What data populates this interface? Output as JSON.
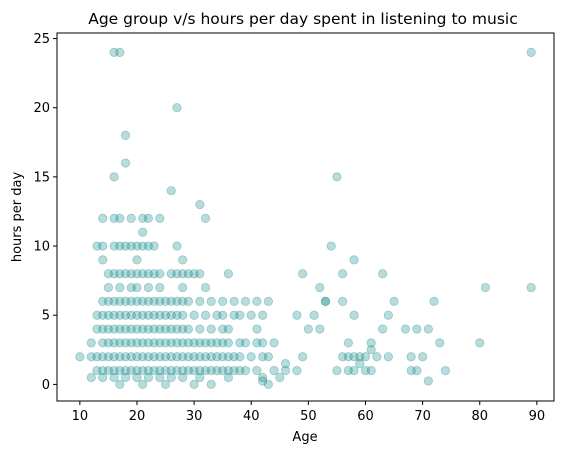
{
  "chart_data": {
    "type": "scatter",
    "title": "Age group v/s hours per day spent in listening to music",
    "xlabel": "Age",
    "ylabel": "hours per day",
    "xlim": [
      6,
      93
    ],
    "ylim": [
      -1.2,
      25.4
    ],
    "xticks": [
      10,
      20,
      30,
      40,
      50,
      60,
      70,
      80,
      90
    ],
    "yticks": [
      0,
      5,
      10,
      15,
      20,
      25
    ],
    "grid": false,
    "marker_color": "#008080",
    "marker_alpha": 0.28,
    "points": [
      [
        16,
        24
      ],
      [
        17,
        24
      ],
      [
        89,
        24
      ],
      [
        27,
        20
      ],
      [
        18,
        18
      ],
      [
        18,
        16
      ],
      [
        16,
        15
      ],
      [
        55,
        15
      ],
      [
        26,
        14
      ],
      [
        31,
        13
      ],
      [
        14,
        12
      ],
      [
        16,
        12
      ],
      [
        17,
        12
      ],
      [
        19,
        12
      ],
      [
        21,
        12
      ],
      [
        22,
        12
      ],
      [
        24,
        12
      ],
      [
        32,
        12
      ],
      [
        13,
        10
      ],
      [
        14,
        10
      ],
      [
        16,
        10
      ],
      [
        17,
        10
      ],
      [
        18,
        10
      ],
      [
        19,
        10
      ],
      [
        20,
        10
      ],
      [
        21,
        10
      ],
      [
        22,
        10
      ],
      [
        23,
        10
      ],
      [
        27,
        10
      ],
      [
        54,
        10
      ],
      [
        14,
        9
      ],
      [
        20,
        9
      ],
      [
        28,
        9
      ],
      [
        21,
        11
      ],
      [
        53,
        6
      ],
      [
        58,
        9
      ],
      [
        15,
        8
      ],
      [
        16,
        8
      ],
      [
        17,
        8
      ],
      [
        18,
        8
      ],
      [
        19,
        8
      ],
      [
        20,
        8
      ],
      [
        21,
        8
      ],
      [
        22,
        8
      ],
      [
        23,
        8
      ],
      [
        24,
        8
      ],
      [
        26,
        8
      ],
      [
        27,
        8
      ],
      [
        28,
        8
      ],
      [
        29,
        8
      ],
      [
        30,
        8
      ],
      [
        31,
        8
      ],
      [
        36,
        8
      ],
      [
        49,
        8
      ],
      [
        56,
        8
      ],
      [
        63,
        8
      ],
      [
        15,
        7
      ],
      [
        17,
        7
      ],
      [
        19,
        7
      ],
      [
        20,
        7
      ],
      [
        22,
        7
      ],
      [
        24,
        7
      ],
      [
        28,
        7
      ],
      [
        32,
        7
      ],
      [
        52,
        7
      ],
      [
        81,
        7
      ],
      [
        89,
        7
      ],
      [
        14,
        6
      ],
      [
        15,
        6
      ],
      [
        16,
        6
      ],
      [
        17,
        6
      ],
      [
        18,
        6
      ],
      [
        19,
        6
      ],
      [
        20,
        6
      ],
      [
        21,
        6
      ],
      [
        22,
        6
      ],
      [
        23,
        6
      ],
      [
        24,
        6
      ],
      [
        25,
        6
      ],
      [
        26,
        6
      ],
      [
        27,
        6
      ],
      [
        28,
        6
      ],
      [
        29,
        6
      ],
      [
        31,
        6
      ],
      [
        33,
        6
      ],
      [
        35,
        6
      ],
      [
        37,
        6
      ],
      [
        39,
        6
      ],
      [
        41,
        6
      ],
      [
        43,
        6
      ],
      [
        53,
        6
      ],
      [
        56,
        6
      ],
      [
        65,
        6
      ],
      [
        72,
        6
      ],
      [
        13,
        5
      ],
      [
        14,
        5
      ],
      [
        15,
        5
      ],
      [
        16,
        5
      ],
      [
        17,
        5
      ],
      [
        18,
        5
      ],
      [
        19,
        5
      ],
      [
        20,
        5
      ],
      [
        21,
        5
      ],
      [
        22,
        5
      ],
      [
        23,
        5
      ],
      [
        24,
        5
      ],
      [
        25,
        5
      ],
      [
        26,
        5
      ],
      [
        27,
        5
      ],
      [
        28,
        5
      ],
      [
        30,
        5
      ],
      [
        32,
        5
      ],
      [
        34,
        5
      ],
      [
        35,
        5
      ],
      [
        37,
        5
      ],
      [
        38,
        5
      ],
      [
        40,
        5
      ],
      [
        42,
        5
      ],
      [
        48,
        5
      ],
      [
        51,
        5
      ],
      [
        58,
        5
      ],
      [
        64,
        5
      ],
      [
        13,
        4
      ],
      [
        14,
        4
      ],
      [
        15,
        4
      ],
      [
        16,
        4
      ],
      [
        17,
        4
      ],
      [
        18,
        4
      ],
      [
        19,
        4
      ],
      [
        20,
        4
      ],
      [
        21,
        4
      ],
      [
        22,
        4
      ],
      [
        23,
        4
      ],
      [
        24,
        4
      ],
      [
        25,
        4
      ],
      [
        26,
        4
      ],
      [
        27,
        4
      ],
      [
        28,
        4
      ],
      [
        29,
        4
      ],
      [
        31,
        4
      ],
      [
        33,
        4
      ],
      [
        35,
        4
      ],
      [
        36,
        4
      ],
      [
        41,
        4
      ],
      [
        50,
        4
      ],
      [
        52,
        4
      ],
      [
        63,
        4
      ],
      [
        67,
        4
      ],
      [
        69,
        4
      ],
      [
        71,
        4
      ],
      [
        12,
        3
      ],
      [
        14,
        3
      ],
      [
        15,
        3
      ],
      [
        16,
        3
      ],
      [
        17,
        3
      ],
      [
        18,
        3
      ],
      [
        19,
        3
      ],
      [
        20,
        3
      ],
      [
        21,
        3
      ],
      [
        22,
        3
      ],
      [
        23,
        3
      ],
      [
        24,
        3
      ],
      [
        25,
        3
      ],
      [
        26,
        3
      ],
      [
        27,
        3
      ],
      [
        28,
        3
      ],
      [
        29,
        3
      ],
      [
        30,
        3
      ],
      [
        31,
        3
      ],
      [
        32,
        3
      ],
      [
        33,
        3
      ],
      [
        34,
        3
      ],
      [
        35,
        3
      ],
      [
        36,
        3
      ],
      [
        38,
        3
      ],
      [
        39,
        3
      ],
      [
        41,
        3
      ],
      [
        42,
        3
      ],
      [
        44,
        3
      ],
      [
        57,
        3
      ],
      [
        61,
        3
      ],
      [
        73,
        3
      ],
      [
        80,
        3
      ],
      [
        10,
        2
      ],
      [
        12,
        2
      ],
      [
        13,
        2
      ],
      [
        14,
        2
      ],
      [
        15,
        2
      ],
      [
        16,
        2
      ],
      [
        17,
        2
      ],
      [
        18,
        2
      ],
      [
        19,
        2
      ],
      [
        20,
        2
      ],
      [
        21,
        2
      ],
      [
        22,
        2
      ],
      [
        23,
        2
      ],
      [
        24,
        2
      ],
      [
        25,
        2
      ],
      [
        26,
        2
      ],
      [
        27,
        2
      ],
      [
        28,
        2
      ],
      [
        29,
        2
      ],
      [
        30,
        2
      ],
      [
        31,
        2
      ],
      [
        32,
        2
      ],
      [
        33,
        2
      ],
      [
        34,
        2
      ],
      [
        35,
        2
      ],
      [
        36,
        2
      ],
      [
        37,
        2
      ],
      [
        38,
        2
      ],
      [
        40,
        2
      ],
      [
        42,
        2
      ],
      [
        43,
        2
      ],
      [
        49,
        2
      ],
      [
        56,
        2
      ],
      [
        57,
        2
      ],
      [
        58,
        2
      ],
      [
        59,
        2
      ],
      [
        60,
        2
      ],
      [
        62,
        2
      ],
      [
        64,
        2
      ],
      [
        68,
        2
      ],
      [
        70,
        2
      ],
      [
        13,
        1
      ],
      [
        14,
        1
      ],
      [
        15,
        1
      ],
      [
        16,
        1
      ],
      [
        17,
        1
      ],
      [
        18,
        1
      ],
      [
        19,
        1
      ],
      [
        20,
        1
      ],
      [
        21,
        1
      ],
      [
        22,
        1
      ],
      [
        23,
        1
      ],
      [
        24,
        1
      ],
      [
        25,
        1
      ],
      [
        26,
        1
      ],
      [
        27,
        1
      ],
      [
        28,
        1
      ],
      [
        29,
        1
      ],
      [
        30,
        1
      ],
      [
        31,
        1
      ],
      [
        32,
        1
      ],
      [
        33,
        1
      ],
      [
        34,
        1
      ],
      [
        35,
        1
      ],
      [
        36,
        1
      ],
      [
        37,
        1
      ],
      [
        38,
        1
      ],
      [
        39,
        1
      ],
      [
        41,
        1
      ],
      [
        44,
        1
      ],
      [
        46,
        1
      ],
      [
        48,
        1
      ],
      [
        55,
        1
      ],
      [
        57,
        1
      ],
      [
        58,
        1
      ],
      [
        60,
        1
      ],
      [
        61,
        1
      ],
      [
        68,
        1
      ],
      [
        69,
        1
      ],
      [
        74,
        1
      ],
      [
        12,
        0.5
      ],
      [
        14,
        0.5
      ],
      [
        16,
        0.5
      ],
      [
        18,
        0.5
      ],
      [
        20,
        0.5
      ],
      [
        22,
        0.5
      ],
      [
        24,
        0.5
      ],
      [
        26,
        0.5
      ],
      [
        28,
        0.5
      ],
      [
        31,
        0.5
      ],
      [
        36,
        0.5
      ],
      [
        42,
        0.5
      ],
      [
        45,
        0.5
      ],
      [
        46,
        1.5
      ],
      [
        59,
        1.5
      ],
      [
        61,
        2.5
      ],
      [
        17,
        0
      ],
      [
        21,
        0
      ],
      [
        25,
        0
      ],
      [
        30,
        0
      ],
      [
        33,
        0
      ],
      [
        42,
        0.25
      ],
      [
        43,
        0
      ],
      [
        71,
        0.25
      ]
    ]
  }
}
